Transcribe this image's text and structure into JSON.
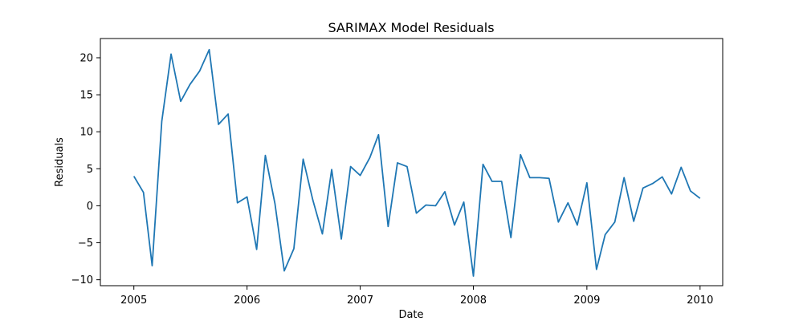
{
  "chart_data": {
    "type": "line",
    "title": "SARIMAX Model Residuals",
    "xlabel": "Date",
    "ylabel": "Residuals",
    "x_ticks": [
      "2005",
      "2006",
      "2007",
      "2008",
      "2009",
      "2010"
    ],
    "y_ticks": [
      -10,
      -5,
      0,
      5,
      10,
      15,
      20
    ],
    "xlim": [
      "2004-09-15",
      "2010-03-15"
    ],
    "ylim": [
      -10.8,
      22.6
    ],
    "grid": false,
    "legend": "none",
    "color": "#1f77b4",
    "series": [
      {
        "x": [
          "2005-01",
          "2005-02",
          "2005-03",
          "2005-04",
          "2005-05",
          "2005-06",
          "2005-07",
          "2005-08",
          "2005-09",
          "2005-10",
          "2005-11",
          "2005-12",
          "2006-01",
          "2006-02",
          "2006-03",
          "2006-04",
          "2006-05",
          "2006-06",
          "2006-07",
          "2006-08",
          "2006-09",
          "2006-10",
          "2006-11",
          "2006-12",
          "2007-01",
          "2007-02",
          "2007-03",
          "2007-04",
          "2007-05",
          "2007-06",
          "2007-07",
          "2007-08",
          "2007-09",
          "2007-10",
          "2007-11",
          "2007-12",
          "2008-01",
          "2008-02",
          "2008-03",
          "2008-04",
          "2008-05",
          "2008-06",
          "2008-07",
          "2008-08",
          "2008-09",
          "2008-10",
          "2008-11",
          "2008-12",
          "2009-01",
          "2009-02",
          "2009-03",
          "2009-04",
          "2009-05",
          "2009-06",
          "2009-07",
          "2009-08",
          "2009-09",
          "2009-10",
          "2009-11",
          "2009-12",
          "2010-01"
        ],
        "values": [
          4.0,
          1.8,
          -8.1,
          11.4,
          20.5,
          14.1,
          16.4,
          18.2,
          21.1,
          11.0,
          12.4,
          0.4,
          1.2,
          -5.9,
          6.8,
          0.3,
          -8.8,
          -5.8,
          6.3,
          0.8,
          -3.8,
          4.9,
          -4.5,
          5.3,
          4.1,
          6.5,
          9.6,
          -2.8,
          5.8,
          5.3,
          -1.0,
          0.1,
          0.0,
          1.9,
          -2.6,
          0.5,
          -9.5,
          5.6,
          3.3,
          3.3,
          -4.3,
          6.9,
          3.8,
          3.8,
          3.7,
          -2.2,
          0.4,
          -2.6,
          3.1,
          -8.6,
          -3.9,
          -2.2,
          3.8,
          -2.1,
          2.4,
          3.0,
          3.9,
          1.6,
          5.2,
          2.0,
          1.0
        ]
      }
    ]
  }
}
